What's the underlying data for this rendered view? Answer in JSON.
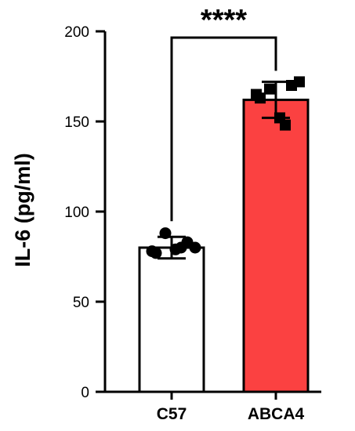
{
  "chart_data": {
    "type": "bar",
    "ylabel": "IL-6  (pg/ml)",
    "ylim": [
      0,
      200
    ],
    "yticks": [
      0,
      50,
      100,
      150,
      200
    ],
    "categories": [
      "C57",
      "ABCA4"
    ],
    "values": [
      80,
      162
    ],
    "error": [
      6,
      10
    ],
    "bar_colors": [
      "#ffffff",
      "#fb4141"
    ],
    "edge_color": "#000000",
    "points": [
      {
        "category": "C57",
        "marker": "circle",
        "values": [
          88,
          83,
          80,
          78,
          77,
          79,
          80
        ]
      },
      {
        "category": "ABCA4",
        "marker": "square",
        "values": [
          168,
          170,
          172,
          165,
          163,
          152,
          148
        ]
      }
    ],
    "significance": {
      "between": [
        "C57",
        "ABCA4"
      ],
      "label": "****"
    }
  }
}
